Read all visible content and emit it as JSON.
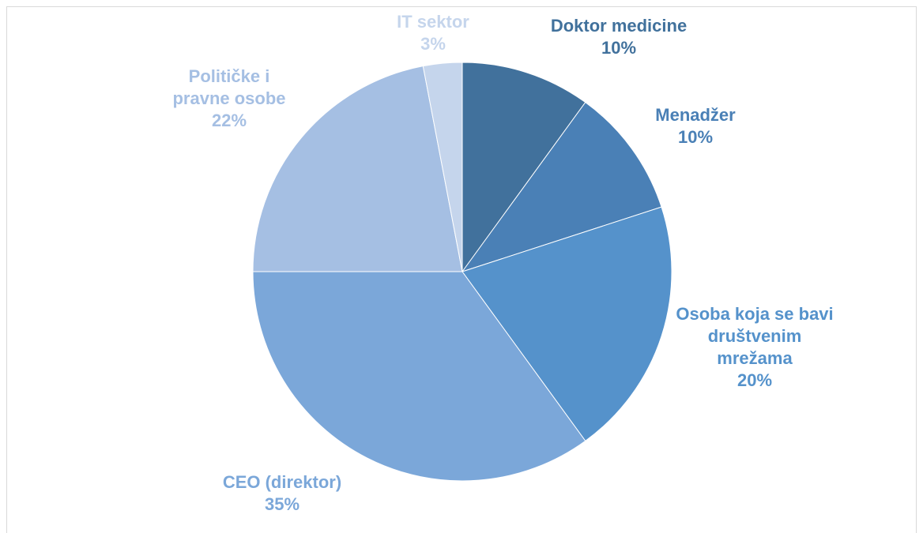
{
  "chart_data": {
    "type": "pie",
    "categories": [
      "Doktor medicine",
      "Menadžer",
      "Osoba koja se bavi društvenim mrežama",
      "CEO (direktor)",
      "Političke i pravne osobe",
      "IT sektor"
    ],
    "values": [
      10,
      10,
      20,
      35,
      22,
      3
    ],
    "value_labels": [
      "10%",
      "10%",
      "20%",
      "35%",
      "22%",
      "3%"
    ],
    "colors": [
      "#41719c",
      "#4a80b6",
      "#5592cb",
      "#7ba7d9",
      "#a5bfe3",
      "#c5d5ec"
    ]
  }
}
